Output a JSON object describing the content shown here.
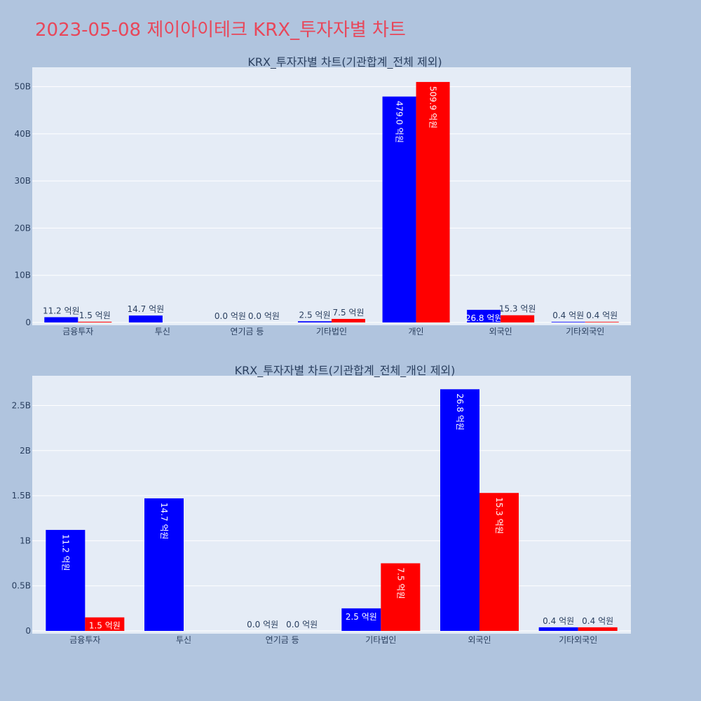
{
  "page": {
    "title": "2023-05-08 제이아이테크 KRX_투자자별 차트"
  },
  "colors": {
    "buy": "#0000ff",
    "sell": "#ff0000"
  },
  "chart_data": [
    {
      "type": "bar",
      "title": "KRX_투자자별 차트(기관합계_전체 제외)",
      "categories": [
        "금융투자",
        "투신",
        "연기금 등",
        "기타법인",
        "개인",
        "외국인",
        "기타외국인"
      ],
      "series": [
        {
          "values": [
            1.12,
            1.47,
            0.0,
            0.25,
            47.9,
            2.68,
            0.04
          ],
          "labels": [
            "11.2 억원",
            "14.7 억원",
            "0.0 억원",
            "2.5 억원",
            "479.0 억원",
            "26.8 억원",
            "0.4 억원"
          ]
        },
        {
          "values": [
            0.15,
            0.0,
            0.0,
            0.75,
            50.99,
            1.53,
            0.04
          ],
          "labels": [
            "1.5 억원",
            "",
            "0.0 억원",
            "7.5 억원",
            "509.9 억원",
            "15.3 억원",
            "0.4 억원"
          ]
        }
      ],
      "y_unit": "B",
      "yticks": [
        "0",
        "10B",
        "20B",
        "30B",
        "40B",
        "50B"
      ],
      "ylim": [
        0,
        54.1
      ],
      "xlabel": "",
      "ylabel": "",
      "grid": true
    },
    {
      "type": "bar",
      "title": "KRX_투자자별 차트(기관합계_전체_개인 제외)",
      "categories": [
        "금융투자",
        "투신",
        "연기금 등",
        "기타법인",
        "외국인",
        "기타외국인"
      ],
      "series": [
        {
          "values": [
            1.12,
            1.47,
            0.0,
            0.25,
            2.68,
            0.04
          ],
          "labels": [
            "11.2 억원",
            "14.7 억원",
            "0.0 억원",
            "2.5 억원",
            "26.8 억원",
            "0.4 억원"
          ]
        },
        {
          "values": [
            0.15,
            0.0,
            0.0,
            0.75,
            1.53,
            0.04
          ],
          "labels": [
            "1.5 억원",
            "",
            "0.0 억원",
            "7.5 억원",
            "15.3 억원",
            "0.4 억원"
          ]
        }
      ],
      "y_unit": "B",
      "yticks": [
        "0",
        "0.5B",
        "1B",
        "1.5B",
        "2B",
        "2.5B"
      ],
      "ylim": [
        0,
        2.83
      ],
      "xlabel": "",
      "ylabel": "",
      "grid": true
    }
  ]
}
